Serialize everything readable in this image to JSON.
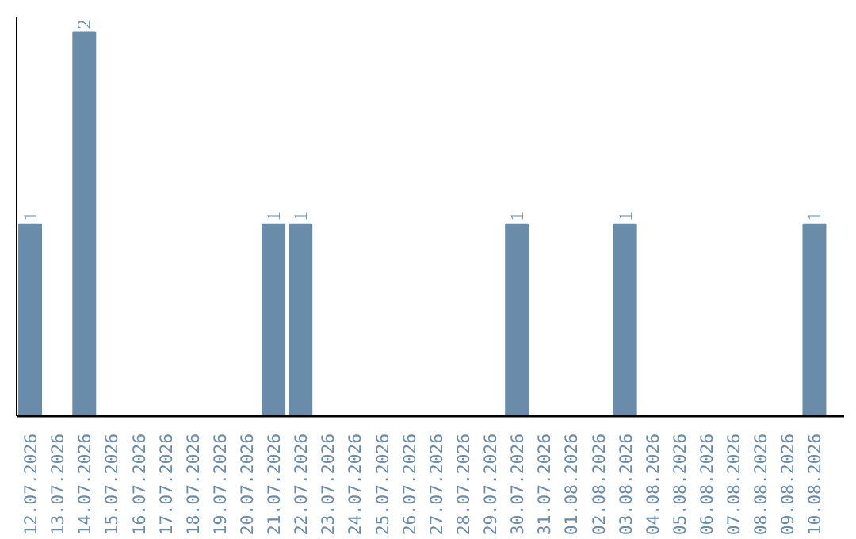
{
  "chart_data": {
    "type": "bar",
    "categories": [
      "12.07.2026",
      "13.07.2026",
      "14.07.2026",
      "15.07.2026",
      "16.07.2026",
      "17.07.2026",
      "18.07.2026",
      "19.07.2026",
      "20.07.2026",
      "21.07.2026",
      "22.07.2026",
      "23.07.2026",
      "24.07.2026",
      "25.07.2026",
      "26.07.2026",
      "27.07.2026",
      "28.07.2026",
      "29.07.2026",
      "30.07.2026",
      "31.07.2026",
      "01.08.2026",
      "02.08.2026",
      "03.08.2026",
      "04.08.2026",
      "05.08.2026",
      "06.08.2026",
      "07.08.2026",
      "08.08.2026",
      "09.08.2026",
      "10.08.2026"
    ],
    "values": [
      1,
      0,
      2,
      0,
      0,
      0,
      0,
      0,
      0,
      1,
      1,
      0,
      0,
      0,
      0,
      0,
      0,
      0,
      1,
      0,
      0,
      0,
      1,
      0,
      0,
      0,
      0,
      0,
      0,
      1
    ],
    "value_labels": [
      "1",
      null,
      "2",
      null,
      null,
      null,
      null,
      null,
      null,
      "1",
      "1",
      null,
      null,
      null,
      null,
      null,
      null,
      null,
      "1",
      null,
      null,
      null,
      "1",
      null,
      null,
      null,
      null,
      null,
      null,
      "1"
    ],
    "color": "#6a8cab",
    "tick_labels": "x"
  }
}
